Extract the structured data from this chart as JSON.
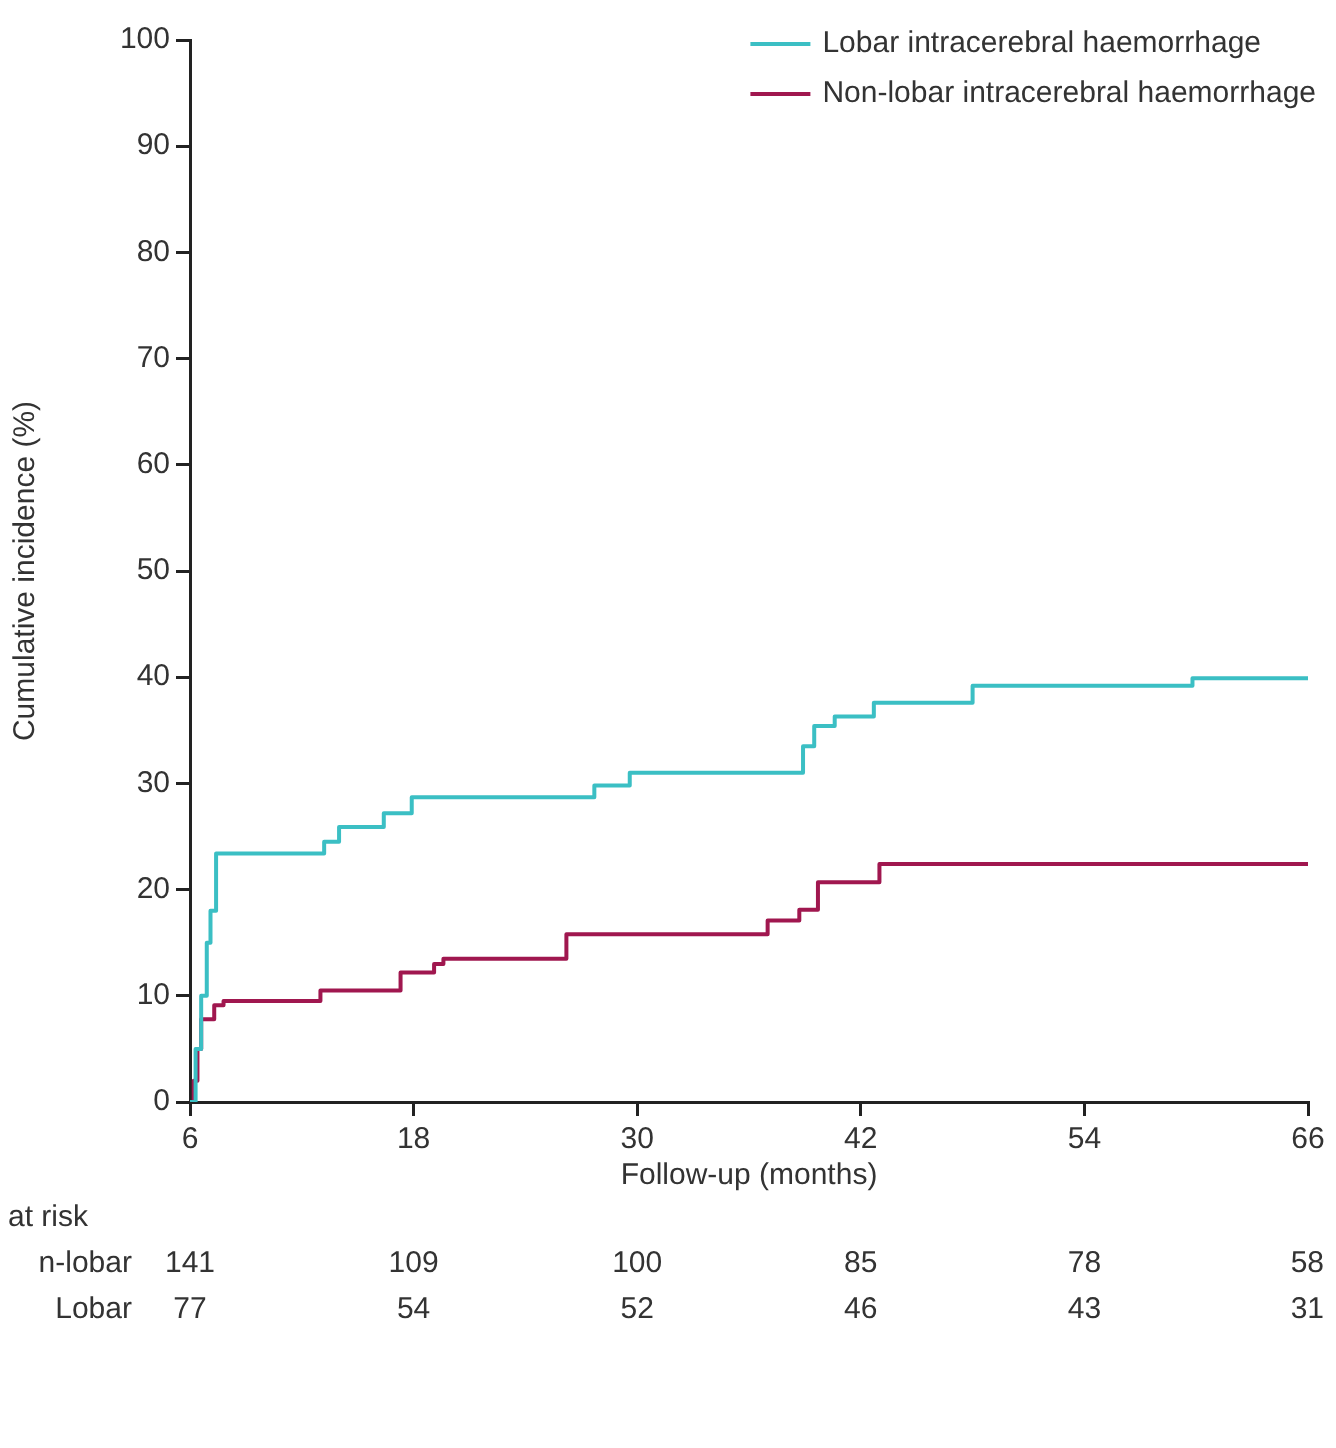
{
  "chart_data": {
    "type": "step",
    "xlabel": "Follow-up (months)",
    "ylabel": "Cumulative incidence (%)",
    "xlim": [
      6,
      66
    ],
    "xticks": [
      6,
      18,
      30,
      42,
      54,
      66
    ],
    "ylim": [
      0,
      100
    ],
    "yticks": [
      0,
      10,
      20,
      30,
      40,
      50,
      60,
      70,
      80,
      90,
      100
    ],
    "grid": false,
    "legend": "top right",
    "marker": "none",
    "line_style": "solid",
    "series": [
      {
        "name": "Lobar intracerebral haemorrhage",
        "color": "#3bbfc4",
        "x": [
          6,
          6.3,
          6.6,
          6.9,
          7.1,
          7.4,
          13.2,
          14.0,
          16.4,
          17.9,
          27.7,
          29.6,
          38.9,
          39.5,
          40.6,
          42.7,
          48.0,
          59.8,
          66
        ],
        "values": [
          0,
          5,
          10,
          15,
          18,
          23.4,
          24.5,
          25.9,
          27.2,
          28.7,
          29.8,
          31.0,
          33.5,
          35.4,
          36.3,
          37.6,
          39.2,
          39.9,
          39.9
        ]
      },
      {
        "name": "Non-lobar intracerebral haemorrhage",
        "color": "#a0174f",
        "x": [
          6,
          6.2,
          6.4,
          6.6,
          7.3,
          7.8,
          13.0,
          17.3,
          19.1,
          19.6,
          26.2,
          37.0,
          38.7,
          39.7,
          43.0,
          66
        ],
        "values": [
          0,
          2,
          5,
          7.8,
          9.1,
          9.5,
          10.5,
          12.2,
          13.0,
          13.5,
          15.8,
          17.1,
          18.1,
          20.7,
          22.4,
          22.4
        ]
      }
    ],
    "annotations": [
      "at risk",
      "n-lobar",
      "Lobar",
      "141",
      "109",
      "100",
      "85",
      "78",
      "58",
      "77",
      "54",
      "52",
      "46",
      "43",
      "31"
    ]
  }
}
